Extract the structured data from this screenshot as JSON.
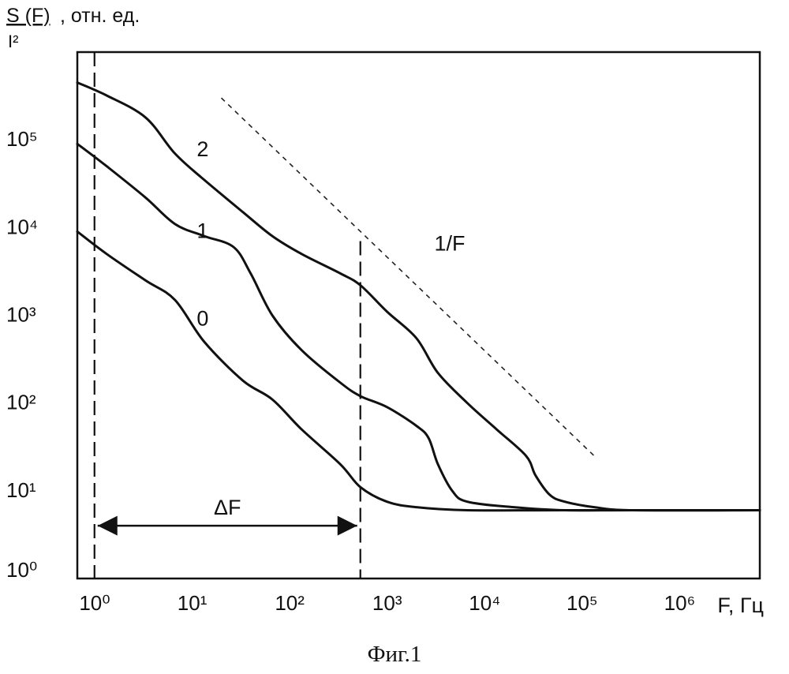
{
  "chart_data": {
    "type": "line",
    "ylabel": {
      "numerator": "S (F)",
      "denominator": "I²",
      "suffix": ", отн. ед."
    },
    "xlabel": "F, Гц",
    "x_scale": "log",
    "y_scale": "log",
    "xlim": [
      1,
      10000000
    ],
    "ylim": [
      1,
      1000000
    ],
    "x_ticks": [
      {
        "value": 1,
        "label": "10⁰"
      },
      {
        "value": 10,
        "label": "10¹"
      },
      {
        "value": 100,
        "label": "10²"
      },
      {
        "value": 1000,
        "label": "10³"
      },
      {
        "value": 10000,
        "label": "10⁴"
      },
      {
        "value": 100000,
        "label": "10⁵"
      },
      {
        "value": 1000000,
        "label": "10⁶"
      }
    ],
    "y_ticks": [
      {
        "value": 1,
        "label": "10⁰"
      },
      {
        "value": 10,
        "label": "10¹"
      },
      {
        "value": 100,
        "label": "10²"
      },
      {
        "value": 1000,
        "label": "10³"
      },
      {
        "value": 10000,
        "label": "10⁴"
      },
      {
        "value": 100000,
        "label": "10⁵"
      }
    ],
    "grid": false,
    "series": [
      {
        "name": "0",
        "x": [
          1,
          2,
          5,
          10,
          20,
          50,
          100,
          200,
          500,
          800,
          1500,
          3000,
          10000,
          100000,
          10000000
        ],
        "y": [
          9000,
          5000,
          2500,
          1500,
          500,
          180,
          110,
          50,
          20,
          11,
          7.5,
          6.5,
          6.0,
          6.0,
          6.0
        ]
      },
      {
        "name": "1",
        "x": [
          1,
          2,
          5,
          10,
          20,
          40,
          60,
          100,
          200,
          500,
          800,
          1500,
          3000,
          4000,
          5000,
          7000,
          10000,
          30000,
          100000,
          500000,
          10000000
        ],
        "y": [
          90000,
          50000,
          22000,
          11000,
          8000,
          6000,
          3000,
          1000,
          400,
          170,
          120,
          90,
          55,
          40,
          20,
          10,
          7.5,
          6.5,
          6.0,
          6.0,
          6.0
        ]
      },
      {
        "name": "2",
        "x": [
          1,
          2,
          5,
          10,
          20,
          50,
          100,
          200,
          500,
          800,
          1500,
          3000,
          5000,
          10000,
          20000,
          40000,
          50000,
          70000,
          100000,
          200000,
          500000,
          10000000
        ],
        "y": [
          450000,
          320000,
          180000,
          70000,
          35000,
          15000,
          8000,
          5000,
          3000,
          2200,
          1100,
          550,
          220,
          100,
          50,
          25,
          15,
          9,
          7.5,
          6.5,
          6.0,
          6.0
        ]
      }
    ],
    "reference_line": {
      "label": "1/F",
      "x": [
        30,
        1000,
        30000,
        200000
      ],
      "y": [
        300000,
        7000,
        200,
        25
      ]
    },
    "markers": {
      "vertical_lines_x": [
        1.5,
        800
      ],
      "interval_label": "ΔF",
      "interval_y": 4
    }
  },
  "caption": "Фиг.1"
}
